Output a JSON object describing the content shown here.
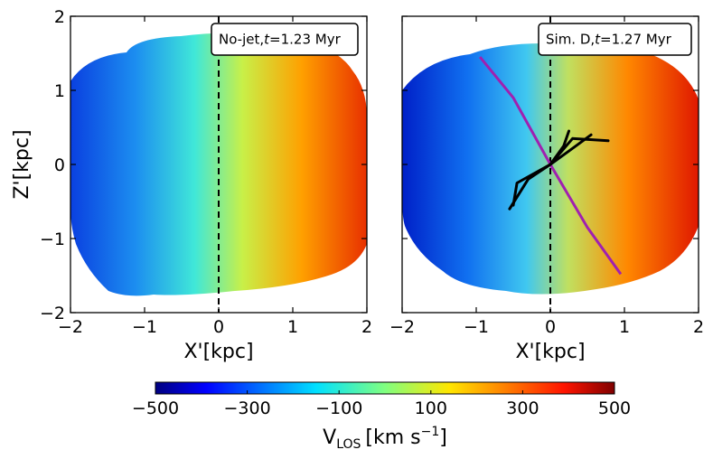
{
  "chart_data": [
    {
      "type": "heatmap",
      "panel": "left",
      "annotation": {
        "label": "No-jet,",
        "t_symbol": "t",
        "value_text": "=1.23 Myr"
      },
      "xlabel": "X'[kpc]",
      "ylabel": "Z'[kpc]",
      "xlim": [
        -2,
        2
      ],
      "ylim": [
        -2,
        2
      ],
      "xticks": [
        -2,
        -1,
        0,
        1,
        2
      ],
      "yticks": [
        -2,
        -1,
        0,
        1,
        2
      ],
      "xtick_labels": [
        "−2",
        "−1",
        "0",
        "1",
        "2"
      ],
      "ytick_labels": [
        "−2",
        "−1",
        "0",
        "1",
        "2"
      ],
      "dashed_line_x": 0,
      "velocity_gradient": {
        "x": [
          -2,
          -1,
          0,
          1,
          2
        ],
        "vlos": [
          -380,
          -200,
          0,
          180,
          380
        ]
      }
    },
    {
      "type": "heatmap",
      "panel": "right",
      "annotation": {
        "label": "Sim. D,",
        "t_symbol": "t",
        "value_text": "=1.27 Myr"
      },
      "xlabel": "X'[kpc]",
      "ylabel": "",
      "xlim": [
        -2,
        2
      ],
      "ylim": [
        -2,
        2
      ],
      "xticks": [
        -2,
        -1,
        0,
        1,
        2
      ],
      "xtick_labels": [
        "−2",
        "−1",
        "0",
        "1",
        "2"
      ],
      "dashed_line_x": 0,
      "velocity_gradient": {
        "x": [
          -2,
          -1,
          0,
          1,
          2
        ],
        "vlos": [
          -400,
          -220,
          0,
          200,
          400
        ]
      },
      "purple_curve": {
        "x": [
          -0.95,
          -0.5,
          0,
          0.5,
          0.95
        ],
        "y": [
          1.45,
          0.9,
          0,
          -0.85,
          -1.48
        ]
      },
      "jet_paths": [
        {
          "x": [
            0,
            0.3,
            0.78
          ],
          "y": [
            0,
            0.35,
            0.32
          ]
        },
        {
          "x": [
            0,
            0.18,
            0.25
          ],
          "y": [
            0,
            0.25,
            0.45
          ]
        },
        {
          "x": [
            0,
            0.25,
            0.55
          ],
          "y": [
            0,
            0.18,
            0.4
          ]
        },
        {
          "x": [
            0,
            -0.3,
            -0.55
          ],
          "y": [
            0,
            -0.2,
            -0.6
          ]
        },
        {
          "x": [
            0,
            -0.45,
            -0.5
          ],
          "y": [
            0,
            -0.25,
            -0.55
          ]
        }
      ]
    }
  ],
  "colorbar": {
    "ticks": [
      -500,
      -300,
      -100,
      100,
      300,
      500
    ],
    "tick_labels": [
      "−500",
      "−300",
      "−100",
      "100",
      "300",
      "500"
    ],
    "range": [
      -500,
      500
    ],
    "label_main": "V",
    "label_sub": "LOS",
    "label_units": "[km s",
    "label_exp": "−1",
    "label_close": "]"
  }
}
